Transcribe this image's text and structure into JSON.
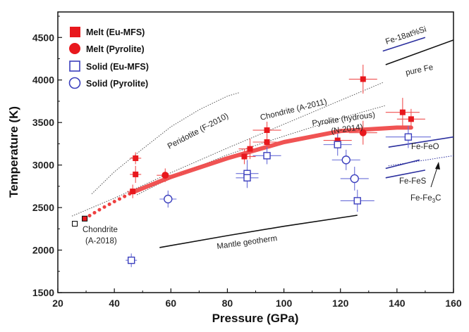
{
  "chart_data": {
    "type": "scatter",
    "xlabel": "Pressure (GPa)",
    "ylabel": "Temperature (K)",
    "xlim": [
      20,
      160
    ],
    "ylim": [
      1500,
      4800
    ],
    "xticks": [
      20,
      40,
      60,
      80,
      100,
      120,
      140,
      160
    ],
    "yticks": [
      1500,
      2000,
      2500,
      3000,
      3500,
      4000,
      4500
    ],
    "tick_labels_x": [
      "20",
      "40",
      "60",
      "80",
      "100",
      "120",
      "140",
      "160"
    ],
    "tick_labels_y": [
      "1500",
      "2000",
      "2500",
      "3000",
      "3500",
      "4000",
      "4500"
    ],
    "legend": [
      {
        "label": "Melt (Eu-MFS)",
        "marker": "filled-square",
        "color": "#e8181d"
      },
      {
        "label": "Melt (Pyrolite)",
        "marker": "filled-circle",
        "color": "#e8181d"
      },
      {
        "label": "Solid (Eu-MFS)",
        "marker": "open-square",
        "color": "#3b3fbd"
      },
      {
        "label": "Solid (Pyrolite)",
        "marker": "open-circle",
        "color": "#3b3fbd"
      }
    ],
    "series": [
      {
        "name": "Melt (Eu-MFS)",
        "marker": "filled-square",
        "points": [
          {
            "x": 46.5,
            "y": 2690,
            "xerr": 2,
            "yerr": 80
          },
          {
            "x": 47.5,
            "y": 3080,
            "xerr": 2,
            "yerr": 70
          },
          {
            "x": 47.5,
            "y": 2890,
            "xerr": 2,
            "yerr": 100
          },
          {
            "x": 86,
            "y": 3100,
            "xerr": 4,
            "yerr": 90
          },
          {
            "x": 88,
            "y": 3190,
            "xerr": 4,
            "yerr": 120
          },
          {
            "x": 94,
            "y": 3410,
            "xerr": 5,
            "yerr": 100
          },
          {
            "x": 94,
            "y": 3270,
            "xerr": 5,
            "yerr": 90
          },
          {
            "x": 119,
            "y": 3290,
            "xerr": 5,
            "yerr": 100
          },
          {
            "x": 128,
            "y": 4010,
            "xerr": 5,
            "yerr": 170
          },
          {
            "x": 142,
            "y": 3620,
            "xerr": 6,
            "yerr": 170
          },
          {
            "x": 145,
            "y": 3540,
            "xerr": 5,
            "yerr": 120
          }
        ]
      },
      {
        "name": "Melt (Pyrolite)",
        "marker": "filled-circle",
        "points": [
          {
            "x": 58,
            "y": 2880,
            "xerr": 3,
            "yerr": 80
          },
          {
            "x": 128,
            "y": 3380,
            "xerr": 5,
            "yerr": 140
          }
        ]
      },
      {
        "name": "Solid (Eu-MFS)",
        "marker": "open-square",
        "points": [
          {
            "x": 46,
            "y": 1880,
            "xerr": 2,
            "yerr": 80
          },
          {
            "x": 87,
            "y": 2900,
            "xerr": 4,
            "yerr": 160
          },
          {
            "x": 87,
            "y": 2850,
            "xerr": 4,
            "yerr": 120
          },
          {
            "x": 94,
            "y": 3110,
            "xerr": 5,
            "yerr": 100
          },
          {
            "x": 119,
            "y": 3240,
            "xerr": 5,
            "yerr": 130
          },
          {
            "x": 126,
            "y": 2580,
            "xerr": 6,
            "yerr": 130
          },
          {
            "x": 144,
            "y": 3330,
            "xerr": 8,
            "yerr": 130
          }
        ]
      },
      {
        "name": "Solid (Pyrolite)",
        "marker": "open-circle",
        "points": [
          {
            "x": 59,
            "y": 2600,
            "xerr": 3,
            "yerr": 100
          },
          {
            "x": 122,
            "y": 3060,
            "xerr": 5,
            "yerr": 120
          },
          {
            "x": 125,
            "y": 2840,
            "xerr": 5,
            "yerr": 140
          }
        ]
      }
    ],
    "chondrite_2018_points": [
      {
        "x": 26,
        "y": 2310,
        "marker": "open-square",
        "color": "#111111"
      },
      {
        "x": 29.5,
        "y": 2370,
        "marker": "filled-square-outlined",
        "color": "#e8181d"
      }
    ],
    "melting_curve": {
      "color": "#ee4040",
      "solid": [
        [
          46.5,
          2680
        ],
        [
          60,
          2860
        ],
        [
          80,
          3080
        ],
        [
          100,
          3270
        ],
        [
          120,
          3400
        ],
        [
          140,
          3440
        ],
        [
          145,
          3440
        ]
      ],
      "dotted": [
        [
          29.5,
          2370
        ],
        [
          35,
          2480
        ],
        [
          40,
          2570
        ],
        [
          46.5,
          2680
        ]
      ]
    },
    "reference_curves": [
      {
        "label": "Peridotite (F-2010)",
        "style": "dotted",
        "color": "#555555",
        "points": [
          [
            32,
            2660
          ],
          [
            40,
            2920
          ],
          [
            50,
            3190
          ],
          [
            60,
            3450
          ],
          [
            70,
            3650
          ],
          [
            80,
            3810
          ],
          [
            84,
            3850
          ]
        ]
      },
      {
        "label": "Chondrite (A-2011)",
        "style": "dotted",
        "color": "#555555",
        "points": [
          [
            25,
            2400
          ],
          [
            40,
            2610
          ],
          [
            60,
            2910
          ],
          [
            80,
            3200
          ],
          [
            100,
            3480
          ],
          [
            120,
            3760
          ],
          [
            135,
            3970
          ]
        ]
      },
      {
        "label": "Pyrolite (hydrous) (N-2014)",
        "style": "dotted",
        "color": "#555555",
        "points": [
          [
            48,
            2650
          ],
          [
            60,
            2850
          ],
          [
            80,
            3120
          ],
          [
            100,
            3340
          ],
          [
            120,
            3550
          ],
          [
            136,
            3700
          ]
        ]
      },
      {
        "label": "Mantle geotherm",
        "style": "solid",
        "color": "#111111",
        "points": [
          [
            56,
            2030
          ],
          [
            80,
            2170
          ],
          [
            100,
            2280
          ],
          [
            126,
            2410
          ]
        ]
      },
      {
        "label": "Fe-18at%Si",
        "style": "solid",
        "color": "#2b2f9e",
        "points": [
          [
            135,
            4340
          ],
          [
            150,
            4500
          ]
        ]
      },
      {
        "label": "pure Fe",
        "style": "solid",
        "color": "#111111",
        "points": [
          [
            136,
            4180
          ],
          [
            160,
            4470
          ]
        ]
      },
      {
        "label": "Fe-FeO",
        "style": "solid",
        "color": "#2b2f9e",
        "points": [
          [
            137,
            3210
          ],
          [
            160,
            3330
          ]
        ]
      },
      {
        "label": "Fe-FeS",
        "style": "solid",
        "color": "#2b2f9e",
        "points": [
          [
            136,
            2960
          ],
          [
            148,
            3060
          ]
        ]
      },
      {
        "label": "Fe-FeS-b",
        "style": "solid",
        "color": "#2b2f9e",
        "points": [
          [
            136,
            2850
          ],
          [
            150,
            2940
          ]
        ]
      },
      {
        "label": "Fe-Fe3C",
        "style": "dotted",
        "color": "#2b2f9e",
        "points": [
          [
            137,
            2990
          ],
          [
            160,
            3110
          ]
        ]
      }
    ],
    "annotations": {
      "peridotite": "Peridotite (F-2010)",
      "chondrite_2011": "Chondrite (A-2011)",
      "pyrolite_line1": "Pyrolite (hydrous)",
      "pyrolite_line2": "(N-2014)",
      "mantle": "Mantle geotherm",
      "chondrite_2018_line1": "Chondrite",
      "chondrite_2018_line2": "(A-2018)",
      "fe_si": "Fe-18at%Si",
      "pure_fe": "pure Fe",
      "fe_feo": "Fe-FeO",
      "fe_fes": "Fe-FeS",
      "fe_fe3c_base": "Fe-Fe",
      "fe_fe3c_sub": "3",
      "fe_fe3c_tail": "C"
    }
  }
}
